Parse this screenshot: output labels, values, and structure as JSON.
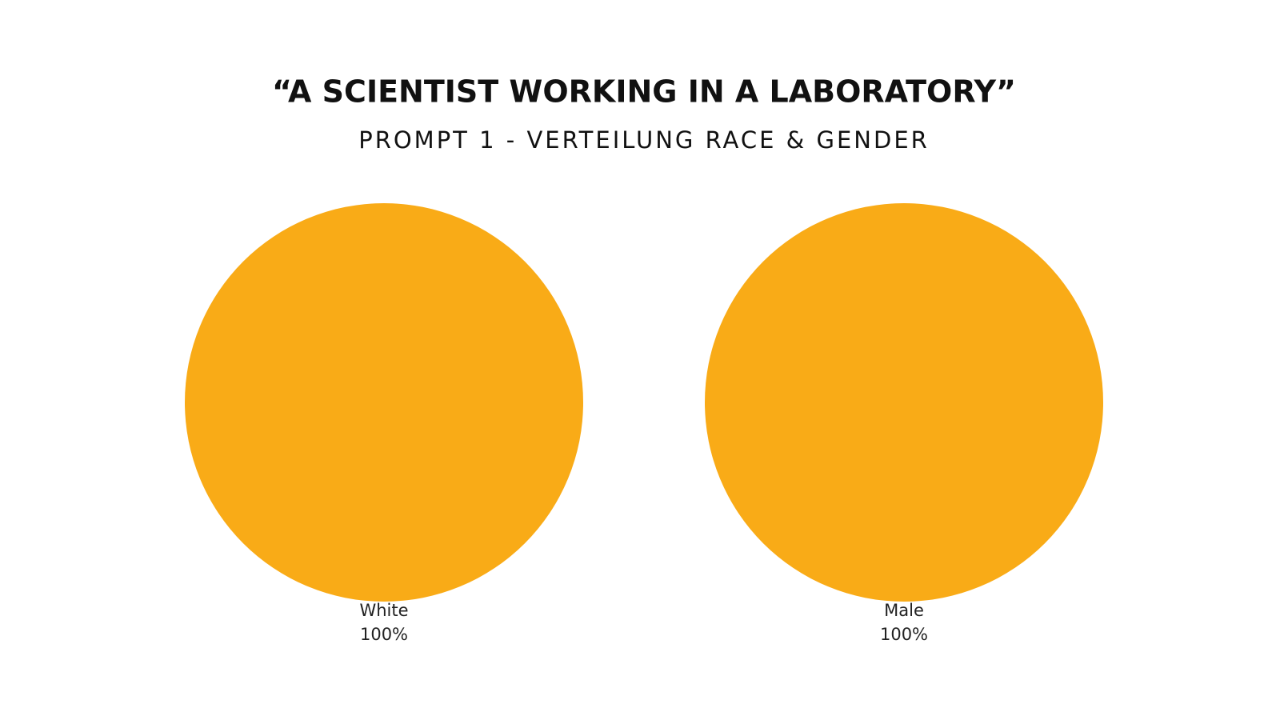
{
  "title": "“A SCIENTIST WORKING IN A LABORATORY”",
  "subtitle": "PROMPT 1 - VERTEILUNG RACE & GENDER",
  "chart_data": [
    {
      "type": "pie",
      "categories": [
        "White"
      ],
      "values": [
        100
      ],
      "value_labels": [
        "100%"
      ],
      "colors": [
        "#f9ab17"
      ]
    },
    {
      "type": "pie",
      "categories": [
        "Male"
      ],
      "values": [
        100
      ],
      "value_labels": [
        "100%"
      ],
      "colors": [
        "#f9ab17"
      ]
    }
  ]
}
